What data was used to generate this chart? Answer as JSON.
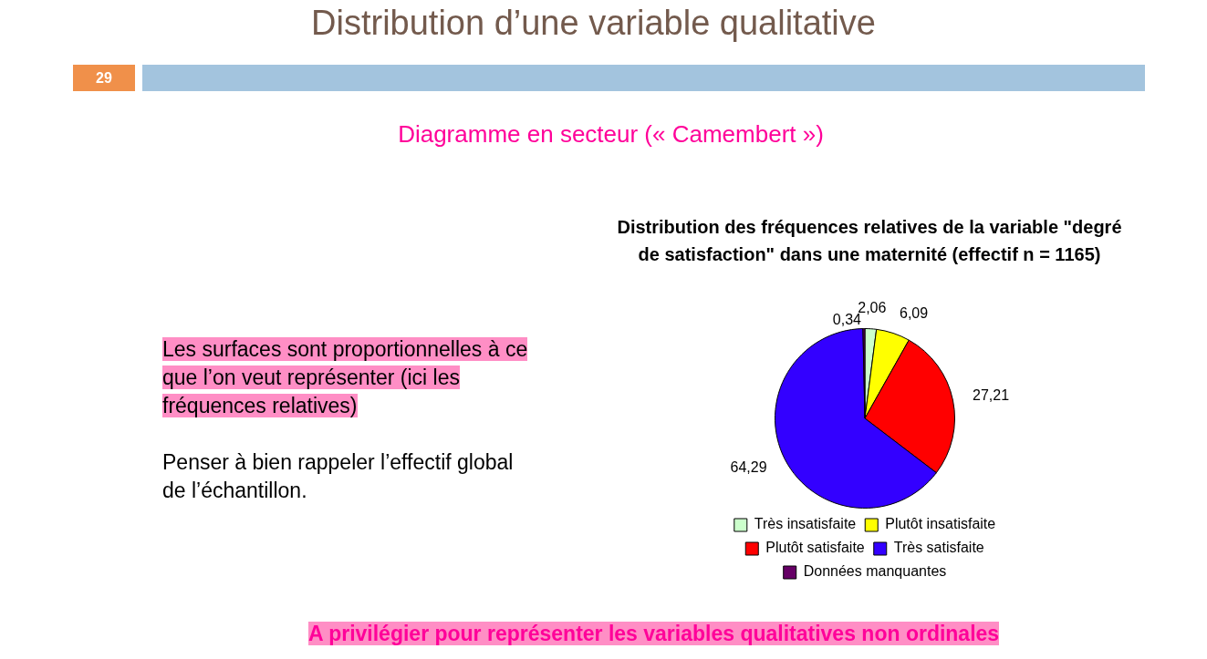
{
  "chart_data": {
    "type": "pie",
    "title": "Distribution des fréquences relatives de la variable \"degré de satisfaction\" dans une maternité (effectif n = 1165)",
    "categories": [
      "Très insatisfaite",
      "Plutôt insatisfaite",
      "Plutôt satisfaite",
      "Très satisfaite",
      "Données manquantes"
    ],
    "values": [
      2.06,
      6.09,
      27.21,
      64.29,
      0.34
    ],
    "colors": [
      "#ccffcc",
      "#ffff00",
      "#ff0000",
      "#3300ff",
      "#660066"
    ],
    "value_labels": [
      "2,06",
      "6,09",
      "27,21",
      "64,29",
      "0,34"
    ],
    "legend": "bottom",
    "annotations": [
      "Distribution d’une variable qualitative",
      "29",
      "Diagramme en secteur (« Camembert »)",
      "Les surfaces sont proportionnelles à ce que l’on veut représenter (ici les fréquences relatives)",
      "Penser à bien rappeler l’effectif global de l’échantillon.",
      "A privilégier pour représenter les variables qualitatives non ordinales"
    ]
  }
}
